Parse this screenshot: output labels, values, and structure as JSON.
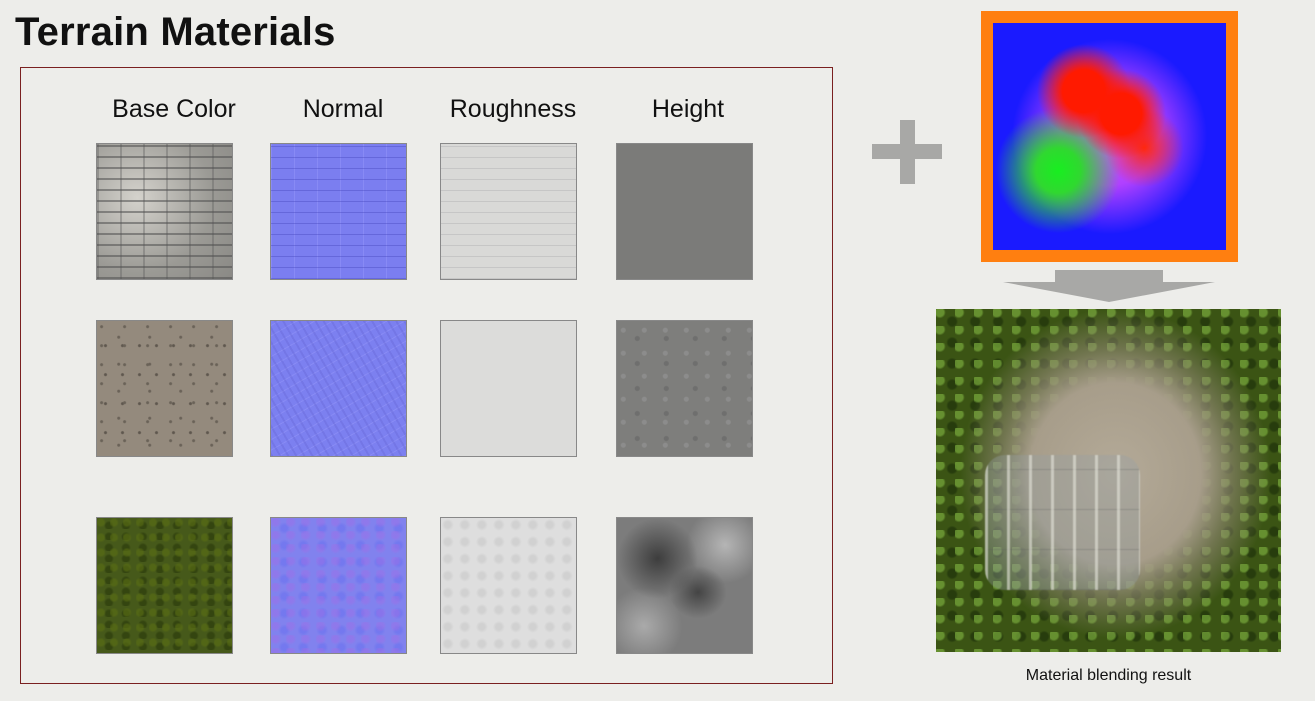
{
  "title": "Terrain Materials",
  "columns": [
    "Base Color",
    "Normal",
    "Roughness",
    "Height"
  ],
  "blend_caption": "Material blending result"
}
